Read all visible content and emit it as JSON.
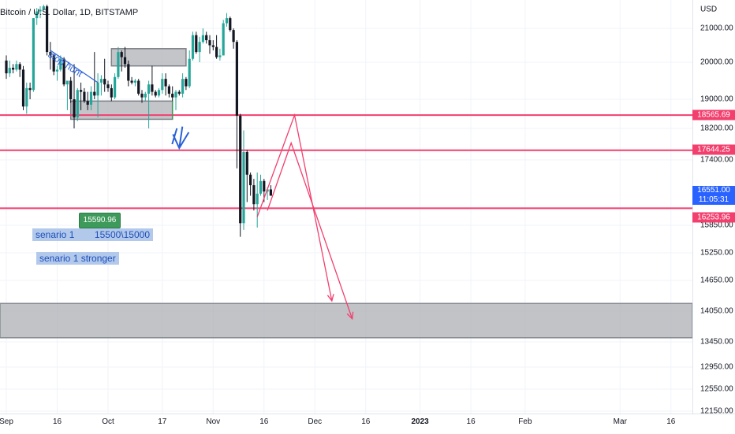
{
  "header": {
    "title": "Bitcoin / U.S. Dollar, 1D, BITSTAMP"
  },
  "price_axis": {
    "currency": "USD",
    "ticks": [
      "21000.00",
      "20000.00",
      "19000.00",
      "18200.00",
      "17400.00",
      "15850.00",
      "15250.00",
      "14650.00",
      "14050.00",
      "13450.00",
      "12950.00",
      "12550.00",
      "12150.00"
    ],
    "tags": {
      "level_upper": "18565.69",
      "level_mid": "17644.25",
      "current_price": "16551.00",
      "countdown": "11:05:31",
      "level_lower": "16253.96"
    }
  },
  "time_axis": {
    "labels": [
      "Sep",
      "16",
      "Oct",
      "17",
      "Nov",
      "16",
      "Dec",
      "16",
      "2023",
      "16",
      "Feb",
      "Mar",
      "16"
    ]
  },
  "annotations": {
    "stop_hunt": "stop hunt",
    "green_badge": "15590.96",
    "scenario_1_label": "senario 1",
    "scenario_1_target": "15500\\15000",
    "scenario_1_stronger": "senario 1 stronger"
  },
  "colors": {
    "up": "#26a69a",
    "down": "#131722",
    "level_line": "#f23f6e",
    "arrow": "#f23f6e",
    "zone": "#a9acb2",
    "drawing": "#2a61d6"
  },
  "chart_data": {
    "type": "candlestick",
    "symbol": "Bitcoin / U.S. Dollar",
    "interval": "1D",
    "exchange": "BITSTAMP",
    "y_unit": "USD",
    "ylim": [
      12150,
      21700
    ],
    "x_start": "2022-09-01",
    "x_end": "2023-03-20",
    "horizontal_levels": [
      18565.69,
      17644.25,
      16253.96
    ],
    "current_price": 16551.0,
    "zone": [
      13530,
      14200
    ],
    "candles": [
      {
        "date": "2022-09-01",
        "o": 20050,
        "h": 20200,
        "l": 19550,
        "c": 19700
      },
      {
        "date": "2022-09-02",
        "o": 19700,
        "h": 20050,
        "l": 19600,
        "c": 19850
      },
      {
        "date": "2022-09-03",
        "o": 19850,
        "h": 19950,
        "l": 19700,
        "c": 19800
      },
      {
        "date": "2022-09-04",
        "o": 19800,
        "h": 20050,
        "l": 19750,
        "c": 19950
      },
      {
        "date": "2022-09-05",
        "o": 19950,
        "h": 20000,
        "l": 19600,
        "c": 19800
      },
      {
        "date": "2022-09-06",
        "o": 19800,
        "h": 19900,
        "l": 18700,
        "c": 18800
      },
      {
        "date": "2022-09-07",
        "o": 18800,
        "h": 19450,
        "l": 18600,
        "c": 19300
      },
      {
        "date": "2022-09-08",
        "o": 19300,
        "h": 19450,
        "l": 19000,
        "c": 19250
      },
      {
        "date": "2022-09-09",
        "o": 19250,
        "h": 21300,
        "l": 19200,
        "c": 21300
      },
      {
        "date": "2022-09-10",
        "o": 21300,
        "h": 21600,
        "l": 21100,
        "c": 21500
      },
      {
        "date": "2022-09-11",
        "o": 21500,
        "h": 21650,
        "l": 21300,
        "c": 21550
      },
      {
        "date": "2022-09-12",
        "o": 21550,
        "h": 21700,
        "l": 21600,
        "c": 21650
      },
      {
        "date": "2022-09-13",
        "o": 21650,
        "h": 21700,
        "l": 20200,
        "c": 20300
      },
      {
        "date": "2022-09-14",
        "o": 20300,
        "h": 20600,
        "l": 19800,
        "c": 20200
      },
      {
        "date": "2022-09-15",
        "o": 20200,
        "h": 20250,
        "l": 19650,
        "c": 19750
      },
      {
        "date": "2022-09-16",
        "o": 19750,
        "h": 19900,
        "l": 19500,
        "c": 19800
      },
      {
        "date": "2022-09-17",
        "o": 19800,
        "h": 20200,
        "l": 19750,
        "c": 20100
      },
      {
        "date": "2022-09-18",
        "o": 20100,
        "h": 20150,
        "l": 19350,
        "c": 19400
      },
      {
        "date": "2022-09-19",
        "o": 19400,
        "h": 19500,
        "l": 18700,
        "c": 19500
      },
      {
        "date": "2022-09-20",
        "o": 19500,
        "h": 19600,
        "l": 18900,
        "c": 19000
      },
      {
        "date": "2022-09-21",
        "o": 19000,
        "h": 19950,
        "l": 18200,
        "c": 18500
      },
      {
        "date": "2022-09-22",
        "o": 18500,
        "h": 19300,
        "l": 18400,
        "c": 19250
      },
      {
        "date": "2022-09-23",
        "o": 19250,
        "h": 19450,
        "l": 18700,
        "c": 19200
      },
      {
        "date": "2022-09-24",
        "o": 19200,
        "h": 19300,
        "l": 18900,
        "c": 18950
      },
      {
        "date": "2022-09-25",
        "o": 18950,
        "h": 19200,
        "l": 18700,
        "c": 18850
      },
      {
        "date": "2022-09-26",
        "o": 18850,
        "h": 19350,
        "l": 18700,
        "c": 19200
      },
      {
        "date": "2022-09-27",
        "o": 19200,
        "h": 20300,
        "l": 19000,
        "c": 19100
      },
      {
        "date": "2022-09-28",
        "o": 19100,
        "h": 19700,
        "l": 18500,
        "c": 19450
      },
      {
        "date": "2022-09-29",
        "o": 19450,
        "h": 19650,
        "l": 19100,
        "c": 19550
      },
      {
        "date": "2022-09-30",
        "o": 19550,
        "h": 20100,
        "l": 19200,
        "c": 19400
      },
      {
        "date": "2022-10-01",
        "o": 19400,
        "h": 19500,
        "l": 19200,
        "c": 19300
      },
      {
        "date": "2022-10-02",
        "o": 19300,
        "h": 19400,
        "l": 18950,
        "c": 19050
      },
      {
        "date": "2022-10-03",
        "o": 19050,
        "h": 19700,
        "l": 19000,
        "c": 19600
      },
      {
        "date": "2022-10-04",
        "o": 19600,
        "h": 20450,
        "l": 19550,
        "c": 20300
      },
      {
        "date": "2022-10-05",
        "o": 20300,
        "h": 20350,
        "l": 19750,
        "c": 20150
      },
      {
        "date": "2022-10-06",
        "o": 20150,
        "h": 20450,
        "l": 19850,
        "c": 19950
      },
      {
        "date": "2022-10-07",
        "o": 19950,
        "h": 20050,
        "l": 19350,
        "c": 19500
      },
      {
        "date": "2022-10-08",
        "o": 19500,
        "h": 19600,
        "l": 19400,
        "c": 19450
      },
      {
        "date": "2022-10-09",
        "o": 19450,
        "h": 19550,
        "l": 19350,
        "c": 19500
      },
      {
        "date": "2022-10-10",
        "o": 19500,
        "h": 19550,
        "l": 19100,
        "c": 19150
      },
      {
        "date": "2022-10-11",
        "o": 19150,
        "h": 19250,
        "l": 18900,
        "c": 19050
      },
      {
        "date": "2022-10-12",
        "o": 19050,
        "h": 19200,
        "l": 18950,
        "c": 19150
      },
      {
        "date": "2022-10-13",
        "o": 19150,
        "h": 19500,
        "l": 18200,
        "c": 19400
      },
      {
        "date": "2022-10-14",
        "o": 19400,
        "h": 19900,
        "l": 19100,
        "c": 19200
      },
      {
        "date": "2022-10-15",
        "o": 19200,
        "h": 19250,
        "l": 19050,
        "c": 19100
      },
      {
        "date": "2022-10-16",
        "o": 19100,
        "h": 19300,
        "l": 19050,
        "c": 19250
      },
      {
        "date": "2022-10-17",
        "o": 19250,
        "h": 19700,
        "l": 19150,
        "c": 19550
      },
      {
        "date": "2022-10-18",
        "o": 19550,
        "h": 19700,
        "l": 19100,
        "c": 19350
      },
      {
        "date": "2022-10-19",
        "o": 19350,
        "h": 19400,
        "l": 19050,
        "c": 19150
      },
      {
        "date": "2022-10-20",
        "o": 19150,
        "h": 19350,
        "l": 18900,
        "c": 19050
      },
      {
        "date": "2022-10-21",
        "o": 19050,
        "h": 19250,
        "l": 18700,
        "c": 19200
      },
      {
        "date": "2022-10-22",
        "o": 19200,
        "h": 19250,
        "l": 19100,
        "c": 19150
      },
      {
        "date": "2022-10-23",
        "o": 19150,
        "h": 19700,
        "l": 19050,
        "c": 19550
      },
      {
        "date": "2022-10-24",
        "o": 19550,
        "h": 19600,
        "l": 19250,
        "c": 19350
      },
      {
        "date": "2022-10-25",
        "o": 19350,
        "h": 20350,
        "l": 19300,
        "c": 20100
      },
      {
        "date": "2022-10-26",
        "o": 20100,
        "h": 20900,
        "l": 20050,
        "c": 20800
      },
      {
        "date": "2022-10-27",
        "o": 20800,
        "h": 20900,
        "l": 20250,
        "c": 20300
      },
      {
        "date": "2022-10-28",
        "o": 20300,
        "h": 20750,
        "l": 20000,
        "c": 20600
      },
      {
        "date": "2022-10-29",
        "o": 20600,
        "h": 21000,
        "l": 20550,
        "c": 20800
      },
      {
        "date": "2022-10-30",
        "o": 20800,
        "h": 20900,
        "l": 20550,
        "c": 20650
      },
      {
        "date": "2022-10-31",
        "o": 20650,
        "h": 20800,
        "l": 20250,
        "c": 20500
      },
      {
        "date": "2022-11-01",
        "o": 20500,
        "h": 20650,
        "l": 20350,
        "c": 20450
      },
      {
        "date": "2022-11-02",
        "o": 20450,
        "h": 20800,
        "l": 20100,
        "c": 20150
      },
      {
        "date": "2022-11-03",
        "o": 20150,
        "h": 20400,
        "l": 20050,
        "c": 20200
      },
      {
        "date": "2022-11-04",
        "o": 20200,
        "h": 21250,
        "l": 20200,
        "c": 21150
      },
      {
        "date": "2022-11-05",
        "o": 21150,
        "h": 21450,
        "l": 21050,
        "c": 21300
      },
      {
        "date": "2022-11-06",
        "o": 21300,
        "h": 21350,
        "l": 20900,
        "c": 20950
      },
      {
        "date": "2022-11-07",
        "o": 20950,
        "h": 21000,
        "l": 20400,
        "c": 20600
      },
      {
        "date": "2022-11-08",
        "o": 20600,
        "h": 20650,
        "l": 17200,
        "c": 18550
      },
      {
        "date": "2022-11-09",
        "o": 18550,
        "h": 18600,
        "l": 15600,
        "c": 15900
      },
      {
        "date": "2022-11-10",
        "o": 15900,
        "h": 18150,
        "l": 15750,
        "c": 17600
      },
      {
        "date": "2022-11-11",
        "o": 17600,
        "h": 17650,
        "l": 16400,
        "c": 17050
      },
      {
        "date": "2022-11-12",
        "o": 17050,
        "h": 17100,
        "l": 16550,
        "c": 16800
      },
      {
        "date": "2022-11-13",
        "o": 16800,
        "h": 16950,
        "l": 16200,
        "c": 16350
      },
      {
        "date": "2022-11-14",
        "o": 16350,
        "h": 17100,
        "l": 15800,
        "c": 16600
      },
      {
        "date": "2022-11-15",
        "o": 16600,
        "h": 17050,
        "l": 16550,
        "c": 16900
      },
      {
        "date": "2022-11-16",
        "o": 16900,
        "h": 16950,
        "l": 16400,
        "c": 16650
      },
      {
        "date": "2022-11-17",
        "o": 16650,
        "h": 16750,
        "l": 16450,
        "c": 16700
      },
      {
        "date": "2022-11-18",
        "o": 16700,
        "h": 16800,
        "l": 16550,
        "c": 16551
      }
    ]
  }
}
